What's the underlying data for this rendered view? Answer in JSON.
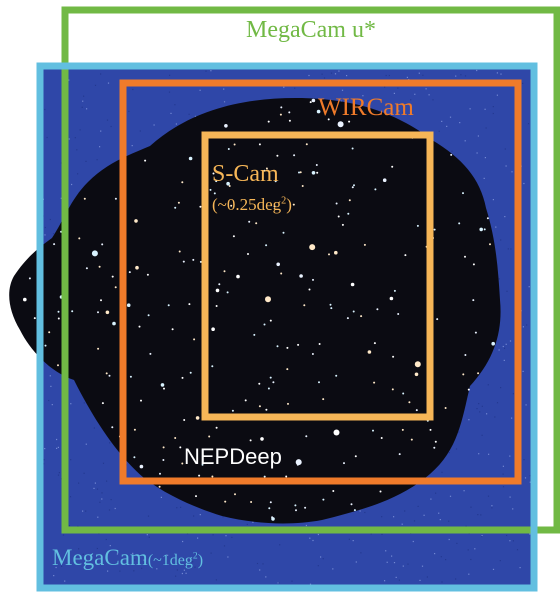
{
  "colors": {
    "sky_background": "#2f47a8",
    "field_image": "#0b0b12",
    "megacam_u": "#71b945",
    "megacam": "#62bfe0",
    "wircam": "#f07b2a",
    "scam": "#f6b657",
    "nepdeep": "#ffffff"
  },
  "regions": {
    "megacam_u": {
      "name": "MegaCam u*"
    },
    "wircam": {
      "name": "WIRCam"
    },
    "scam": {
      "name": "S-Cam",
      "area_prefix": "(~0.25deg",
      "area_sup": "2",
      "area_suffix": ")"
    },
    "nepdeep": {
      "name": "NEPDeep"
    },
    "megacam": {
      "name": "MegaCam",
      "area_prefix": "(~1deg",
      "area_sup": "2",
      "area_suffix": ")"
    }
  }
}
